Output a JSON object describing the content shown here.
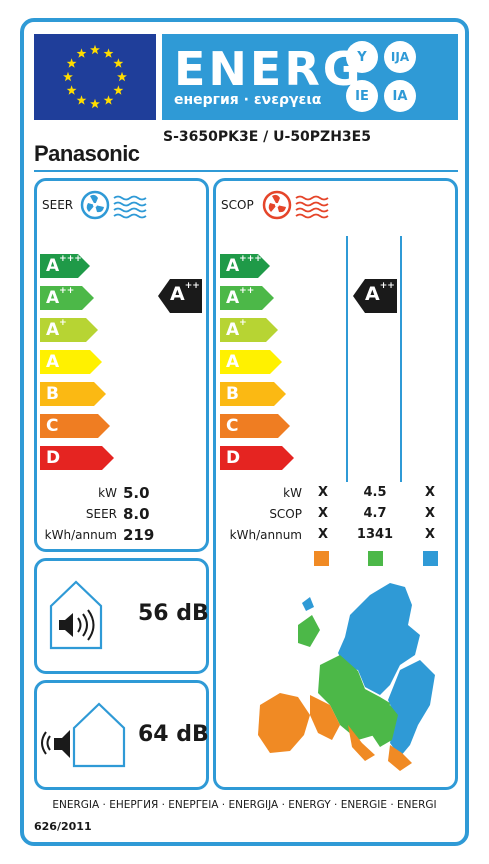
{
  "header": {
    "energy_title": "ENERG",
    "energy_subtitle": "енергия · ενεργεια",
    "lang_suffixes": [
      "Y",
      "IJA",
      "IE",
      "IA"
    ],
    "brand": "Panasonic",
    "model": "S-3650PK3E / U-50PZH3E5"
  },
  "colors": {
    "frame": "#2f9ad6",
    "eu_blue": "#1f3e9a",
    "eu_star": "#ffdd00",
    "class_colors": [
      "#1f9a48",
      "#4cb848",
      "#b7d433",
      "#fff100",
      "#fbb913",
      "#ef7d22",
      "#e52421"
    ],
    "zone_warm": "#f08a24",
    "zone_average": "#4cb848",
    "zone_cold": "#2f9ad6"
  },
  "scale_classes": [
    {
      "letter": "A",
      "plus": "+++"
    },
    {
      "letter": "A",
      "plus": "++"
    },
    {
      "letter": "A",
      "plus": "+"
    },
    {
      "letter": "A",
      "plus": ""
    },
    {
      "letter": "B",
      "plus": ""
    },
    {
      "letter": "C",
      "plus": ""
    },
    {
      "letter": "D",
      "plus": ""
    }
  ],
  "cooling": {
    "title": "SEER",
    "icon": "fan-cool-icon",
    "rating": {
      "letter": "A",
      "plus": "++"
    },
    "specs": [
      {
        "label": "kW",
        "value": "5.0"
      },
      {
        "label": "SEER",
        "value": "8.0"
      },
      {
        "label": "kWh/annum",
        "value": "219"
      }
    ]
  },
  "heating": {
    "title": "SCOP",
    "icon": "fan-heat-icon",
    "rating": {
      "letter": "A",
      "plus": "++"
    },
    "spec_labels": [
      "kW",
      "SCOP",
      "kWh/annum"
    ],
    "zones": [
      {
        "name": "warmer",
        "values": [
          "X",
          "X",
          "X"
        ]
      },
      {
        "name": "average",
        "values": [
          "4.5",
          "4.7",
          "1341"
        ]
      },
      {
        "name": "colder",
        "values": [
          "X",
          "X",
          "X"
        ]
      }
    ]
  },
  "noise": {
    "indoor": {
      "value": "56 dB",
      "icon": "indoor-speaker-icon"
    },
    "outdoor": {
      "value": "64 dB",
      "icon": "outdoor-speaker-icon"
    }
  },
  "footer": {
    "languages": "ENERGIA · ЕНЕРГИЯ · ΕΝΕΡΓΕΙΑ · ENERGIJA · ENERGY · ENERGIE · ENERGI",
    "regulation": "626/2011"
  }
}
